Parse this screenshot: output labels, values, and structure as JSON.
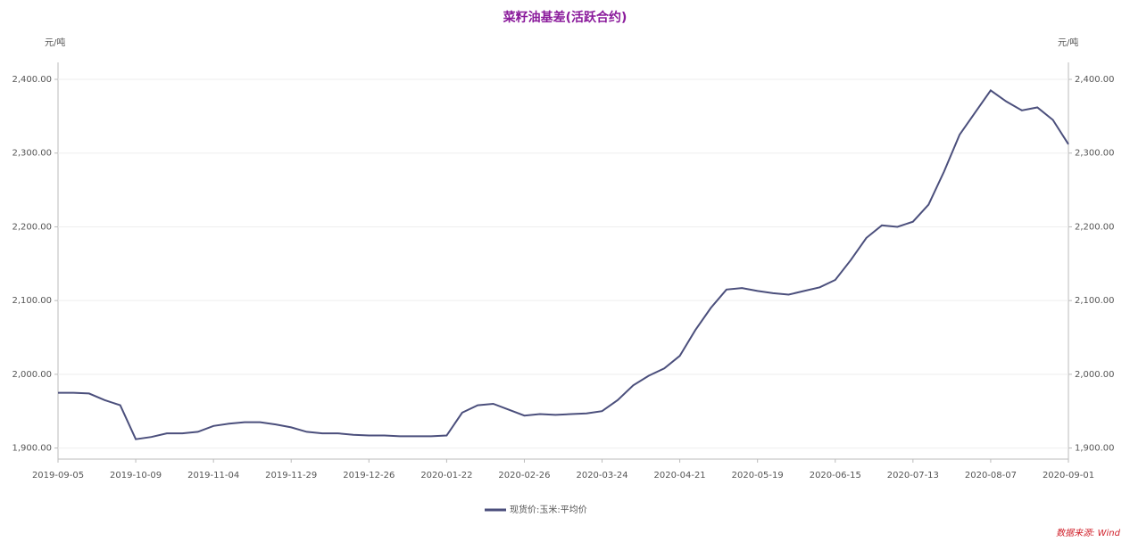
{
  "chart_data": {
    "type": "line",
    "title": "菜籽油基差(活跃合约)",
    "y_unit": "元/吨",
    "y2_unit": "元/吨",
    "source": "数据来源: Wind",
    "categories": [
      "2019-09-05",
      null,
      null,
      null,
      null,
      "2019-10-09",
      null,
      null,
      null,
      null,
      "2019-11-04",
      null,
      null,
      null,
      null,
      "2019-11-29",
      null,
      null,
      null,
      null,
      "2019-12-26",
      null,
      null,
      null,
      null,
      "2020-01-22",
      null,
      null,
      null,
      null,
      "2020-02-26",
      null,
      null,
      null,
      null,
      "2020-03-24",
      null,
      null,
      null,
      null,
      "2020-04-21",
      null,
      null,
      null,
      null,
      "2020-05-19",
      null,
      null,
      null,
      null,
      "2020-06-15",
      null,
      null,
      null,
      null,
      "2020-07-13",
      null,
      null,
      null,
      null,
      "2020-08-07",
      null,
      null,
      null,
      null,
      "2020-09-01"
    ],
    "series": [
      {
        "name": "现货价:玉米:平均价",
        "color": "#4b4f7c",
        "values": [
          1975,
          1975,
          1974,
          1965,
          1958,
          1912,
          1915,
          1920,
          1920,
          1922,
          1930,
          1933,
          1935,
          1935,
          1932,
          1928,
          1922,
          1920,
          1920,
          1918,
          1917,
          1917,
          1916,
          1916,
          1916,
          1917,
          1948,
          1958,
          1960,
          1952,
          1944,
          1946,
          1945,
          1946,
          1947,
          1950,
          1965,
          1985,
          1998,
          2008,
          2025,
          2060,
          2090,
          2115,
          2117,
          2113,
          2110,
          2108,
          2113,
          2118,
          2128,
          2155,
          2185,
          2202,
          2200,
          2207,
          2230,
          2275,
          2325,
          2355,
          2385,
          2370,
          2358,
          2362,
          2345,
          2312
        ]
      }
    ],
    "ylim": [
      1885,
      2423
    ],
    "yticks": [
      {
        "value": 1900,
        "label": "1,900.00"
      },
      {
        "value": 2000,
        "label": "2,000.00"
      },
      {
        "value": 2100,
        "label": "2,100.00"
      },
      {
        "value": 2200,
        "label": "2,200.00"
      },
      {
        "value": 2300,
        "label": "2,300.00"
      },
      {
        "value": 2400,
        "label": "2,400.00"
      }
    ],
    "grid": true
  }
}
